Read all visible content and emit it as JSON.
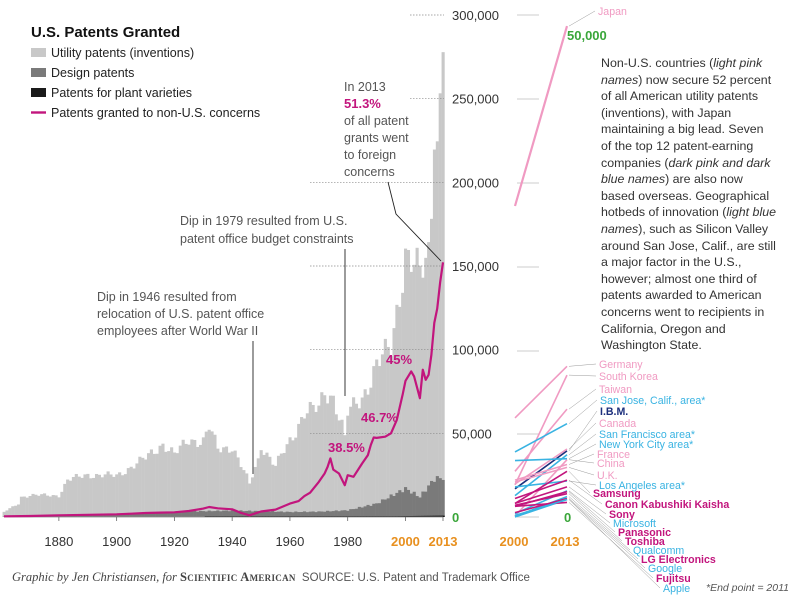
{
  "chart_data": [
    {
      "type": "bar",
      "title": "U.S. Patents Granted",
      "legend": [
        {
          "label": "Utility patents (inventions)",
          "color": "#c8c8c8"
        },
        {
          "label": "Design patents",
          "color": "#7a7a7a"
        },
        {
          "label": "Patents for plant varieties",
          "color": "#1a1a1a"
        },
        {
          "label": "Patents granted to non-U.S. concerns",
          "color": "#c2157d"
        }
      ],
      "legend_position": "top-left",
      "x_range": [
        1861,
        2013
      ],
      "x_ticks": [
        "1880",
        "1900",
        "1920",
        "1940",
        "1960",
        "1980",
        "2000",
        "2013"
      ],
      "y_range": [
        0,
        300000
      ],
      "y_ticks": [
        "0",
        "50,000",
        "100,000",
        "150,000",
        "200,000",
        "250,000",
        "300,000"
      ],
      "series": [
        {
          "name": "Utility patents (inventions)",
          "x_anchor": [
            1861,
            1866,
            1867,
            1870,
            1880,
            1883,
            1890,
            1900,
            1905,
            1910,
            1916,
            1920,
            1925,
            1930,
            1932,
            1935,
            1940,
            1943,
            1946,
            1949,
            1950,
            1955,
            1961,
            1965,
            1970,
            1972,
            1975,
            1979,
            1980,
            1985,
            1990,
            1995,
            2000,
            2005,
            2008,
            2010,
            2011,
            2012,
            2013
          ],
          "y_anchor": [
            3000,
            8000,
            12000,
            13000,
            12900,
            22000,
            25300,
            24600,
            30000,
            35100,
            43900,
            37100,
            46400,
            45200,
            53500,
            40600,
            42200,
            31000,
            20000,
            34000,
            43000,
            30400,
            48300,
            62900,
            64400,
            74800,
            72000,
            48900,
            61800,
            71700,
            90400,
            101400,
            157500,
            143800,
            157800,
            219600,
            224500,
            253200,
            277800
          ]
        },
        {
          "name": "Design patents",
          "x_anchor": [
            1861,
            1880,
            1900,
            1920,
            1930,
            1940,
            1950,
            1960,
            1970,
            1980,
            1990,
            2000,
            2005,
            2010,
            2013
          ],
          "y_anchor": [
            200,
            1000,
            1800,
            3200,
            3500,
            3800,
            3500,
            3000,
            3200,
            4000,
            8000,
            17000,
            12000,
            22800,
            23500
          ]
        },
        {
          "name": "Patents for plant varieties",
          "x_anchor": [
            1931,
            1960,
            1980,
            2000,
            2013
          ],
          "y_anchor": [
            40,
            100,
            120,
            550,
            850
          ]
        },
        {
          "name": "Patents granted to non-U.S. concerns",
          "x": [
            1861,
            1870,
            1880,
            1890,
            1900,
            1905,
            1910,
            1915,
            1920,
            1925,
            1930,
            1932,
            1935,
            1940,
            1943,
            1946,
            1950,
            1955,
            1960,
            1963,
            1965,
            1967,
            1970,
            1972,
            1973,
            1974,
            1975,
            1977,
            1979,
            1980,
            1982,
            1985,
            1987,
            1988,
            1989,
            1990,
            1993,
            1995,
            1997,
            1999,
            2000,
            2002,
            2003,
            2005,
            2006,
            2007,
            2008,
            2009,
            2010,
            2011,
            2012,
            2013
          ],
          "y": [
            400,
            600,
            1000,
            1300,
            1600,
            2000,
            2400,
            2600,
            2800,
            3600,
            5000,
            6000,
            5200,
            4600,
            2500,
            1000,
            3300,
            4400,
            8000,
            9500,
            12500,
            14500,
            21000,
            26000,
            29800,
            35000,
            28300,
            26000,
            19000,
            25000,
            24000,
            32000,
            37000,
            43000,
            47500,
            47300,
            48000,
            50000,
            58000,
            73000,
            81400,
            87000,
            84000,
            71000,
            88000,
            82000,
            85000,
            97000,
            116000,
            124500,
            140000,
            152200
          ]
        }
      ],
      "annotations": {
        "a2013": {
          "l1": "In 2013",
          "pct": "51.3%",
          "l3": "of all patent",
          "l4": "grants went",
          "l5": "to foreign",
          "l6": "concerns"
        },
        "a1979": {
          "l1": "Dip in 1979 resulted from U.S.",
          "l2": "patent office budget constraints"
        },
        "a1946": {
          "l1": "Dip in 1946 resulted from",
          "l2": "relocation of U.S. patent office",
          "l3": "employees after World War II"
        },
        "pct_labels": [
          "38.5%",
          "46.7%",
          "45%"
        ]
      }
    },
    {
      "type": "line",
      "title": "",
      "x": [
        "2000",
        "2013"
      ],
      "y_ticks": [
        "50,000",
        "0"
      ],
      "colors": {
        "light_pink": "#f09ac2",
        "dark_pink": "#c2157d",
        "dark_blue": "#1c2f7c",
        "light_blue": "#39b3e2"
      },
      "series": [
        {
          "name": "Japan",
          "color": "#f09ac2",
          "y": [
            32000,
            50500
          ]
        },
        {
          "name": "Germany",
          "color": "#f09ac2",
          "y": [
            10200,
            15500
          ]
        },
        {
          "name": "South Korea",
          "color": "#f09ac2",
          "y": [
            3300,
            14600
          ]
        },
        {
          "name": "Taiwan",
          "color": "#f09ac2",
          "y": [
            4700,
            11100
          ]
        },
        {
          "name": "San Jose, Calif., area*",
          "color": "#39b3e2",
          "y": [
            6700,
            9600
          ]
        },
        {
          "name": "I.B.M.",
          "color": "#1c2f7c",
          "y": [
            2900,
            6800
          ]
        },
        {
          "name": "Canada",
          "color": "#f09ac2",
          "y": [
            3400,
            7000
          ]
        },
        {
          "name": "San Francisco area*",
          "color": "#39b3e2",
          "y": [
            2200,
            6400
          ]
        },
        {
          "name": "New York City area*",
          "color": "#39b3e2",
          "y": [
            5800,
            6000
          ]
        },
        {
          "name": "France",
          "color": "#f09ac2",
          "y": [
            3800,
            5400
          ]
        },
        {
          "name": "China",
          "color": "#f09ac2",
          "y": [
            100,
            5900
          ]
        },
        {
          "name": "U.K.",
          "color": "#f09ac2",
          "y": [
            3600,
            5100
          ]
        },
        {
          "name": "Los Angeles area*",
          "color": "#39b3e2",
          "y": [
            3100,
            3700
          ]
        },
        {
          "name": "Samsung",
          "color": "#c2157d",
          "y": [
            1400,
            4700
          ]
        },
        {
          "name": "Canon Kabushiki Kaisha",
          "color": "#c2157d",
          "y": [
            1900,
            3800
          ]
        },
        {
          "name": "Sony",
          "color": "#c2157d",
          "y": [
            1400,
            3100
          ]
        },
        {
          "name": "Microsoft",
          "color": "#39b3e2",
          "y": [
            350,
            2700
          ]
        },
        {
          "name": "Panasonic",
          "color": "#c2157d",
          "y": [
            1100,
            2600
          ]
        },
        {
          "name": "Toshiba",
          "color": "#c2157d",
          "y": [
            1200,
            2400
          ]
        },
        {
          "name": "Qualcomm",
          "color": "#39b3e2",
          "y": [
            50,
            2100
          ]
        },
        {
          "name": "LG Electronics",
          "color": "#c2157d",
          "y": [
            450,
            1900
          ]
        },
        {
          "name": "Google",
          "color": "#39b3e2",
          "y": [
            0,
            1800
          ]
        },
        {
          "name": "Fujitsu",
          "color": "#c2157d",
          "y": [
            1100,
            1500
          ]
        },
        {
          "name": "Apple",
          "color": "#39b3e2",
          "y": [
            150,
            1800
          ]
        }
      ]
    }
  ],
  "side_panel": {
    "labels_right": [
      "Japan",
      "Germany",
      "South Korea",
      "Taiwan",
      "San Jose, Calif., area*",
      "I.B.M.",
      "Canada",
      "San Francisco area*",
      "New York City area*",
      "France",
      "China",
      "U.K.",
      "Los Angeles area*",
      "Samsung",
      "Canon Kabushiki Kaisha",
      "Sony",
      "Microsoft",
      "Panasonic",
      "Toshiba",
      "Qualcomm",
      "LG Electronics",
      "Google",
      "Fujitsu",
      "Apple"
    ],
    "text": {
      "s1": "Non-U.S. countries (",
      "s2": "light pink names",
      "s3": ") now secure 52 percent of all American utility patents (inventions), with Japan maintaining a big lead. Seven of the top 12 patent-earning companies (",
      "s4": "dark pink and dark blue names",
      "s5": ") are also now based overseas. Geographical hotbeds of innovation (",
      "s6": "light blue names",
      "s7": "), such as Silicon Valley around San Jose, Calif., are still a major factor in the U.S., however; almost one third of patents awarded to American concerns went to recipients in California, Oregon and Washington State."
    }
  },
  "footer": {
    "credit_pre": "Graphic by Jen Christiansen, for",
    "credit_brand": "Scientific American",
    "source": "SOURCE: U.S. Patent and Trademark Office",
    "endnote": "*End point = 2011"
  }
}
